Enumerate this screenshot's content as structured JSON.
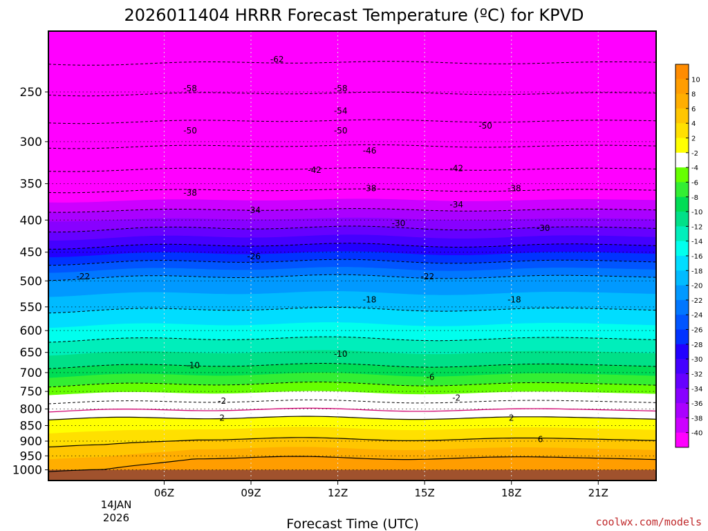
{
  "chart_data": {
    "type": "heatmap",
    "title": "2026011404 HRRR Forecast Temperature (ºC) for KPVD",
    "xlabel": "Forecast Time (UTC)",
    "ylabel": "",
    "x_ticks": [
      "06Z",
      "09Z",
      "12Z",
      "15Z",
      "18Z",
      "21Z"
    ],
    "x_hours": [
      6,
      9,
      12,
      15,
      18,
      21
    ],
    "x_range_hours": [
      2.0,
      23.0
    ],
    "date_label": [
      "14JAN",
      "2026"
    ],
    "y_ticks": [
      250,
      300,
      350,
      400,
      450,
      500,
      550,
      600,
      650,
      700,
      750,
      800,
      850,
      900,
      950,
      1000
    ],
    "y_range_hPa": [
      200,
      1040
    ],
    "ground_level_hPa": 1000,
    "colorbar": {
      "labels": [
        "10",
        "8",
        "6",
        "4",
        "2",
        "-2",
        "-4",
        "-6",
        "-8",
        "-10",
        "-12",
        "-14",
        "-16",
        "-18",
        "-20",
        "-22",
        "-24",
        "-26",
        "-28",
        "-30",
        "-32",
        "-34",
        "-36",
        "-38",
        "-40"
      ],
      "colors": [
        "#ff8c00",
        "#ff9d00",
        "#ffae00",
        "#ffc600",
        "#ffe000",
        "#ffff00",
        "#ffffff",
        "#66ff00",
        "#33ee33",
        "#00dd55",
        "#00e088",
        "#00eebb",
        "#00ffee",
        "#00ddff",
        "#00bbff",
        "#0099ff",
        "#0077ff",
        "#0055ff",
        "#0033ff",
        "#2200ff",
        "#4400ff",
        "#6600ff",
        "#8800ff",
        "#aa00ff",
        "#cc00ff",
        "#ff00ff"
      ]
    },
    "contour_labels": [
      {
        "text": "-62",
        "hour": 9.9,
        "hPa": 222
      },
      {
        "text": "-58",
        "hour": 6.9,
        "hPa": 247
      },
      {
        "text": "-58",
        "hour": 12.1,
        "hPa": 247
      },
      {
        "text": "-54",
        "hour": 12.1,
        "hPa": 268
      },
      {
        "text": "-50",
        "hour": 6.9,
        "hPa": 288
      },
      {
        "text": "-50",
        "hour": 12.1,
        "hPa": 288
      },
      {
        "text": "-50",
        "hour": 17.1,
        "hPa": 283
      },
      {
        "text": "-46",
        "hour": 13.1,
        "hPa": 310
      },
      {
        "text": "-42",
        "hour": 11.2,
        "hPa": 333
      },
      {
        "text": "-42",
        "hour": 16.1,
        "hPa": 331
      },
      {
        "text": "-38",
        "hour": 6.9,
        "hPa": 362
      },
      {
        "text": "-38",
        "hour": 13.1,
        "hPa": 356
      },
      {
        "text": "-38",
        "hour": 18.1,
        "hPa": 356
      },
      {
        "text": "-34",
        "hour": 9.1,
        "hPa": 386
      },
      {
        "text": "-34",
        "hour": 16.1,
        "hPa": 378
      },
      {
        "text": "-30",
        "hour": 14.1,
        "hPa": 405
      },
      {
        "text": "-30",
        "hour": 19.1,
        "hPa": 412
      },
      {
        "text": "-26",
        "hour": 9.1,
        "hPa": 457
      },
      {
        "text": "-22",
        "hour": 3.2,
        "hPa": 492
      },
      {
        "text": "-22",
        "hour": 15.1,
        "hPa": 492
      },
      {
        "text": "-18",
        "hour": 13.1,
        "hPa": 536
      },
      {
        "text": "-18",
        "hour": 18.1,
        "hPa": 536
      },
      {
        "text": "-10",
        "hour": 7.0,
        "hPa": 682
      },
      {
        "text": "-10",
        "hour": 12.1,
        "hPa": 654
      },
      {
        "text": "-6",
        "hour": 15.2,
        "hPa": 712
      },
      {
        "text": "-2",
        "hour": 16.1,
        "hPa": 768
      },
      {
        "text": "-2",
        "hour": 8.0,
        "hPa": 777
      },
      {
        "text": "2",
        "hour": 8.0,
        "hPa": 827
      },
      {
        "text": "2",
        "hour": 18.0,
        "hPa": 827
      },
      {
        "text": "6",
        "hour": 19.0,
        "hPa": 894
      }
    ]
  },
  "credit": "coolwx.com/models"
}
